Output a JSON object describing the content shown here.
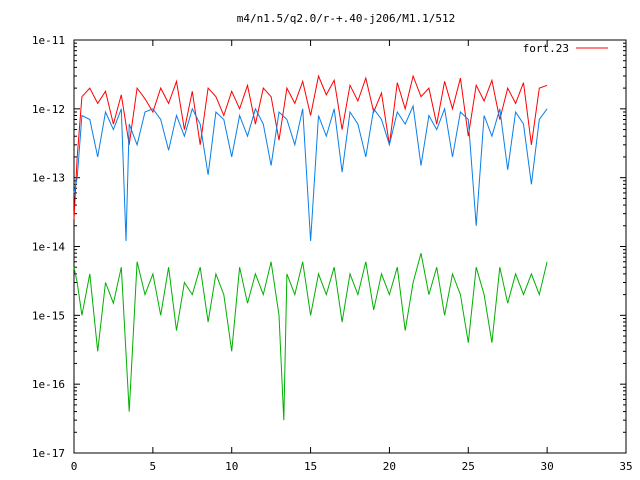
{
  "chart_data": {
    "type": "line",
    "title": "m4/n1.5/q2.0/r-+.40-j206/M1.1/512",
    "xlabel": "",
    "ylabel": "",
    "xlim": [
      0,
      35
    ],
    "ylim": [
      1e-17,
      1e-11
    ],
    "yscale": "log",
    "grid": false,
    "legend_position": "top-right",
    "x_ticks": [
      "0",
      "5",
      "10",
      "15",
      "20",
      "25",
      "30",
      "35"
    ],
    "y_ticks": [
      "1e-11",
      "1e-12",
      "1e-13",
      "1e-14",
      "1e-15",
      "1e-16",
      "1e-17"
    ],
    "series": [
      {
        "name": "fort.23",
        "color": "#ff0000",
        "x": [
          0.0,
          0.2,
          0.5,
          1.0,
          1.5,
          2.0,
          2.5,
          3.0,
          3.5,
          4.0,
          4.5,
          5.0,
          5.5,
          6.0,
          6.5,
          7.0,
          7.5,
          8.0,
          8.5,
          9.0,
          9.5,
          10.0,
          10.5,
          11.0,
          11.5,
          12.0,
          12.5,
          13.0,
          13.5,
          14.0,
          14.5,
          15.0,
          15.5,
          16.0,
          16.5,
          17.0,
          17.5,
          18.0,
          18.5,
          19.0,
          19.5,
          20.0,
          20.5,
          21.0,
          21.5,
          22.0,
          22.5,
          23.0,
          23.5,
          24.0,
          24.5,
          25.0,
          25.5,
          26.0,
          26.5,
          27.0,
          27.5,
          28.0,
          28.5,
          29.0,
          29.5,
          30.0
        ],
        "y": [
          2.5e-14,
          2e-13,
          1.5e-12,
          2e-12,
          1.2e-12,
          1.8e-12,
          6e-13,
          1.6e-12,
          3e-13,
          2e-12,
          1.4e-12,
          9e-13,
          2e-12,
          1.2e-12,
          2.5e-12,
          5e-13,
          1.8e-12,
          3e-13,
          2e-12,
          1.5e-12,
          8e-13,
          1.8e-12,
          1e-12,
          2.2e-12,
          6e-13,
          2e-12,
          1.5e-12,
          3.5e-13,
          2e-12,
          1.2e-12,
          2.5e-12,
          8e-13,
          3e-12,
          1.6e-12,
          2.6e-12,
          5e-13,
          2.2e-12,
          1.3e-12,
          2.8e-12,
          9e-13,
          1.7e-12,
          3e-13,
          2.4e-12,
          1e-12,
          3e-12,
          1.5e-12,
          2e-12,
          6e-13,
          2.5e-12,
          1e-12,
          2.8e-12,
          4e-13,
          2.2e-12,
          1.3e-12,
          2.6e-12,
          7e-13,
          2e-12,
          1.2e-12,
          2.4e-12,
          3e-13,
          2e-12,
          2.2e-12
        ]
      },
      {
        "name": "",
        "color": "#0a7fe8",
        "x": [
          0.0,
          0.2,
          0.5,
          1.0,
          1.5,
          2.0,
          2.5,
          3.0,
          3.3,
          3.5,
          4.0,
          4.5,
          5.0,
          5.5,
          6.0,
          6.5,
          7.0,
          7.5,
          8.0,
          8.5,
          9.0,
          9.5,
          10.0,
          10.5,
          11.0,
          11.5,
          12.0,
          12.5,
          13.0,
          13.5,
          14.0,
          14.5,
          15.0,
          15.5,
          16.0,
          16.5,
          17.0,
          17.5,
          18.0,
          18.5,
          19.0,
          19.5,
          20.0,
          20.5,
          21.0,
          21.5,
          22.0,
          22.5,
          23.0,
          23.5,
          24.0,
          24.5,
          25.0,
          25.5,
          26.0,
          26.5,
          27.0,
          27.5,
          28.0,
          28.5,
          29.0,
          29.5,
          30.0
        ],
        "y": [
          6e-14,
          1e-13,
          8e-13,
          7e-13,
          2e-13,
          9e-13,
          5e-13,
          1e-12,
          1.2e-14,
          6e-13,
          3e-13,
          9e-13,
          1e-12,
          7e-13,
          2.5e-13,
          8e-13,
          4e-13,
          1e-12,
          6e-13,
          1.1e-13,
          9e-13,
          7e-13,
          2e-13,
          8e-13,
          4e-13,
          1e-12,
          6e-13,
          1.5e-13,
          9e-13,
          7e-13,
          3e-13,
          1e-12,
          1.2e-14,
          8e-13,
          4e-13,
          1e-12,
          1.2e-13,
          9e-13,
          6e-13,
          2e-13,
          1e-12,
          7e-13,
          3e-13,
          9e-13,
          6e-13,
          1.1e-12,
          1.5e-13,
          8e-13,
          5e-13,
          1e-12,
          2e-13,
          9e-13,
          7e-13,
          2e-14,
          8e-13,
          4e-13,
          1e-12,
          1.3e-13,
          9e-13,
          6e-13,
          8e-14,
          7e-13,
          1e-12
        ]
      },
      {
        "name": "",
        "color": "#00b000",
        "x": [
          0.0,
          0.2,
          0.5,
          1.0,
          1.5,
          2.0,
          2.5,
          3.0,
          3.5,
          4.0,
          4.5,
          5.0,
          5.5,
          6.0,
          6.5,
          7.0,
          7.5,
          8.0,
          8.5,
          9.0,
          9.5,
          10.0,
          10.5,
          11.0,
          11.5,
          12.0,
          12.5,
          13.0,
          13.3,
          13.5,
          14.0,
          14.5,
          15.0,
          15.5,
          16.0,
          16.5,
          17.0,
          17.5,
          18.0,
          18.5,
          19.0,
          19.5,
          20.0,
          20.5,
          21.0,
          21.5,
          22.0,
          22.5,
          23.0,
          23.5,
          24.0,
          24.5,
          25.0,
          25.5,
          26.0,
          26.5,
          27.0,
          27.5,
          28.0,
          28.5,
          29.0,
          29.5,
          30.0
        ],
        "y": [
          5e-15,
          3e-15,
          1e-15,
          4e-15,
          3e-16,
          3e-15,
          1.5e-15,
          5e-15,
          4e-17,
          6e-15,
          2e-15,
          4e-15,
          1e-15,
          5e-15,
          6e-16,
          3e-15,
          2e-15,
          5e-15,
          8e-16,
          4e-15,
          2e-15,
          3e-16,
          5e-15,
          1.5e-15,
          4e-15,
          2e-15,
          6e-15,
          1e-15,
          3e-17,
          4e-15,
          2e-15,
          6e-15,
          1e-15,
          4e-15,
          2e-15,
          5e-15,
          8e-16,
          4e-15,
          2e-15,
          6e-15,
          1.2e-15,
          4e-15,
          2e-15,
          5e-15,
          6e-16,
          3e-15,
          8e-15,
          2e-15,
          5e-15,
          1e-15,
          4e-15,
          2e-15,
          4e-16,
          5e-15,
          2e-15,
          4e-16,
          5e-15,
          1.5e-15,
          4e-15,
          2e-15,
          4e-15,
          2e-15,
          6e-15
        ]
      }
    ]
  }
}
